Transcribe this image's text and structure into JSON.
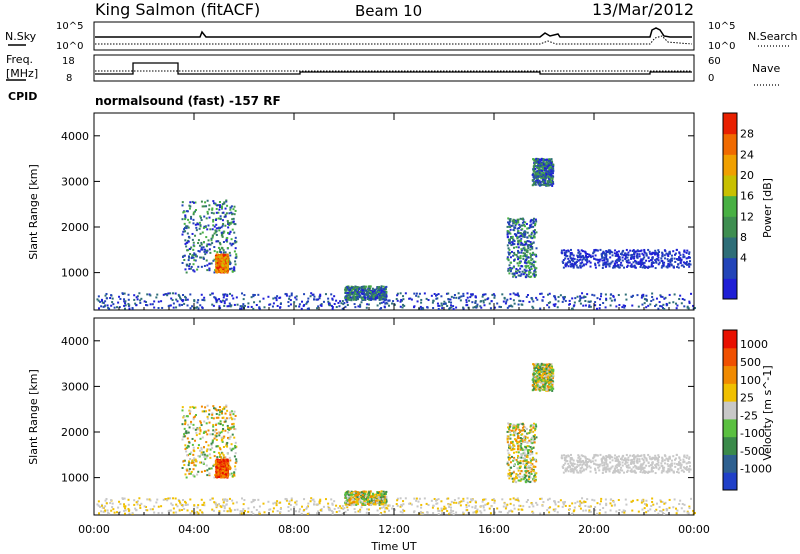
{
  "header": {
    "station": "King Salmon (fitACF)",
    "beam": "Beam 10",
    "date": "13/Mar/2012"
  },
  "top_panels": {
    "nsky_label": "N.Sky",
    "nsky_ticks": [
      "10^5",
      "10^0"
    ],
    "nsearch_label": "N.Search",
    "nsearch_ticks": [
      "10^5",
      "10^0"
    ],
    "freq_label_1": "Freq.",
    "freq_label_2": "[MHz]",
    "freq_ticks": [
      "18",
      "8"
    ],
    "nave_label": "Nave",
    "nave_ticks": [
      "60",
      "0"
    ],
    "cpid_label": "CPID",
    "cpid_text": "normalsound (fast) -157 RF"
  },
  "chart_data": [
    {
      "type": "heatmap",
      "panel": "power",
      "ylabel": "Slant Range [km]",
      "yticks": [
        "4000",
        "3000",
        "2000",
        "1000"
      ],
      "ylim": [
        180,
        4500
      ],
      "xlim": [
        "00:00",
        "00:00"
      ],
      "colorbar_label": "Power [dB]",
      "colorbar_ticks": [
        "28",
        "24",
        "20",
        "16",
        "12",
        "8",
        "4"
      ],
      "colors": [
        "#1f1fd6",
        "#2244b8",
        "#2e6e78",
        "#3e8e50",
        "#48b043",
        "#c8c000",
        "#f0a000",
        "#f06a00",
        "#e82000"
      ],
      "echo_regions": [
        {
          "t_start": "03:30",
          "t_end": "05:40",
          "range_km": [
            1000,
            2600
          ]
        },
        {
          "t_start": "04:50",
          "t_end": "05:20",
          "range_km": [
            1000,
            1400
          ]
        },
        {
          "t_start": "16:30",
          "t_end": "17:40",
          "range_km": [
            900,
            2200
          ]
        },
        {
          "t_start": "17:30",
          "t_end": "18:20",
          "range_km": [
            2900,
            3500
          ]
        },
        {
          "t_start": "18:40",
          "t_end": "23:50",
          "range_km": [
            1100,
            1500
          ]
        },
        {
          "t_start": "10:00",
          "t_end": "11:40",
          "range_km": [
            400,
            700
          ]
        }
      ]
    },
    {
      "type": "heatmap",
      "panel": "velocity",
      "ylabel": "Slant Range [km]",
      "yticks": [
        "4000",
        "3000",
        "2000",
        "1000"
      ],
      "ylim": [
        180,
        4500
      ],
      "colorbar_label": "Velocity [m s^-1]",
      "colorbar_ticks": [
        "1000",
        "500",
        "100",
        "25",
        "-25",
        "-100",
        "-500",
        "-1000"
      ],
      "colors": [
        "#2040c8",
        "#2e6090",
        "#3a8a4a",
        "#5ac040",
        "#c8c8c8",
        "#f0c000",
        "#f08a00",
        "#f05000",
        "#e81000"
      ],
      "xlabel": "Time UT",
      "xticks": [
        "00:00",
        "04:00",
        "08:00",
        "12:00",
        "16:00",
        "20:00",
        "00:00"
      ]
    }
  ]
}
